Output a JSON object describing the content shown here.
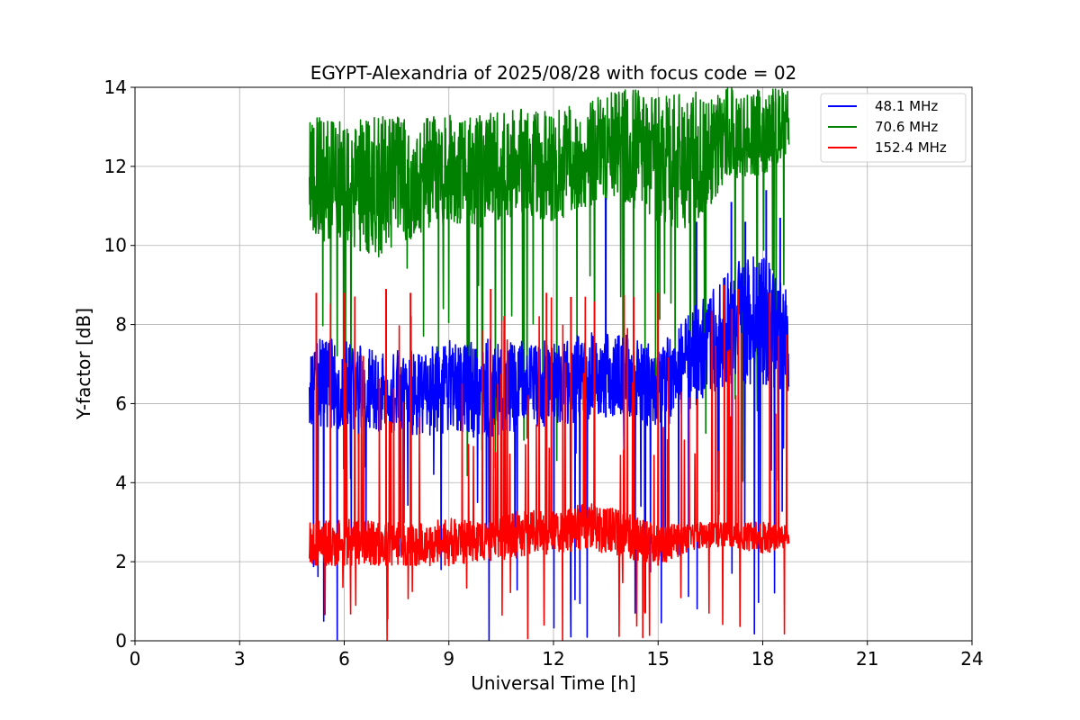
{
  "chart_data": {
    "type": "line",
    "title": "EGYPT-Alexandria of 2025/08/28 with focus code = 02",
    "xlabel": "Universal Time [h]",
    "ylabel": "Y-factor [dB]",
    "xlim": [
      0,
      24
    ],
    "ylim": [
      0,
      14
    ],
    "xticks": [
      0,
      3,
      6,
      9,
      12,
      15,
      18,
      21,
      24
    ],
    "yticks": [
      0,
      2,
      4,
      6,
      8,
      10,
      12,
      14
    ],
    "grid": true,
    "legend_position": "top-right",
    "series": [
      {
        "name": "48.1 MHz",
        "color": "#0000ff",
        "band": [
          [
            5.0,
            5.3,
            7.8
          ],
          [
            6.0,
            5.3,
            7.6
          ],
          [
            7.0,
            5.3,
            7.3
          ],
          [
            8.0,
            5.2,
            7.4
          ],
          [
            9.0,
            5.2,
            7.6
          ],
          [
            10.0,
            5.1,
            7.7
          ],
          [
            11.0,
            5.3,
            7.6
          ],
          [
            12.0,
            5.4,
            7.6
          ],
          [
            13.0,
            5.6,
            7.8
          ],
          [
            14.0,
            5.7,
            7.8
          ],
          [
            15.0,
            5.3,
            7.4
          ],
          [
            16.0,
            5.9,
            8.4
          ],
          [
            17.0,
            6.5,
            9.5
          ],
          [
            18.0,
            6.5,
            9.8
          ],
          [
            18.75,
            6.3,
            8.8
          ]
        ],
        "spike_peaks": [
          [
            13.5,
            11.2
          ],
          [
            16.1,
            10.6
          ],
          [
            17.1,
            11.1
          ],
          [
            17.5,
            10.6
          ],
          [
            18.1,
            11.4
          ],
          [
            18.5,
            10.7
          ]
        ]
      },
      {
        "name": "70.6 MHz",
        "color": "#008000",
        "band": [
          [
            5.0,
            10.2,
            13.3
          ],
          [
            6.0,
            10.0,
            13.1
          ],
          [
            7.0,
            9.7,
            13.3
          ],
          [
            8.0,
            10.2,
            13.2
          ],
          [
            9.0,
            10.5,
            13.3
          ],
          [
            10.0,
            10.3,
            13.3
          ],
          [
            11.0,
            10.8,
            13.5
          ],
          [
            12.0,
            10.6,
            13.4
          ],
          [
            13.0,
            11.0,
            13.7
          ],
          [
            14.0,
            11.0,
            14.0
          ],
          [
            15.0,
            10.6,
            13.8
          ],
          [
            16.0,
            10.3,
            14.0
          ],
          [
            17.0,
            11.6,
            14.0
          ],
          [
            18.0,
            11.8,
            14.0
          ],
          [
            18.75,
            12.2,
            14.0
          ]
        ]
      },
      {
        "name": "152.4 MHz",
        "color": "#ff0000",
        "band": [
          [
            5.0,
            1.9,
            3.0
          ],
          [
            6.0,
            1.9,
            3.1
          ],
          [
            7.0,
            1.9,
            3.0
          ],
          [
            8.0,
            1.9,
            3.0
          ],
          [
            9.0,
            1.9,
            3.1
          ],
          [
            10.0,
            2.0,
            3.0
          ],
          [
            11.0,
            2.1,
            3.3
          ],
          [
            12.0,
            2.2,
            3.3
          ],
          [
            13.0,
            2.3,
            3.5
          ],
          [
            14.0,
            2.1,
            3.3
          ],
          [
            15.0,
            1.9,
            2.9
          ],
          [
            16.0,
            2.3,
            3.0
          ],
          [
            17.0,
            2.4,
            3.0
          ],
          [
            18.0,
            2.2,
            3.0
          ],
          [
            18.75,
            2.3,
            2.9
          ]
        ],
        "spike_peaks": [
          [
            5.2,
            8.8
          ],
          [
            6.0,
            8.8
          ],
          [
            7.2,
            8.9
          ],
          [
            7.9,
            8.8
          ],
          [
            10.2,
            8.9
          ],
          [
            11.8,
            8.8
          ],
          [
            12.5,
            8.7
          ],
          [
            14.3,
            8.7
          ],
          [
            15.0,
            8.8
          ],
          [
            16.9,
            9.0
          ],
          [
            17.3,
            8.9
          ],
          [
            18.2,
            8.8
          ]
        ]
      }
    ]
  }
}
